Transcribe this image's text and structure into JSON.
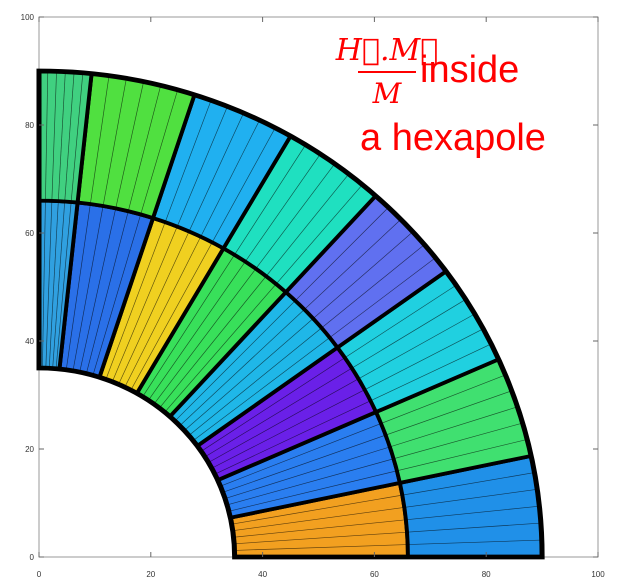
{
  "chart_data": {
    "type": "contour",
    "annotation": {
      "numerator": "H⃗.M⃗",
      "denominator": "M",
      "text": "inside",
      "line2": "a hexapole",
      "color": "#ff0000"
    },
    "xlim": [
      0,
      100
    ],
    "ylim": [
      0,
      100
    ],
    "xticks": [
      0,
      20,
      40,
      60,
      80,
      100
    ],
    "yticks": [
      0,
      20,
      40,
      60,
      80,
      100
    ]
  }
}
